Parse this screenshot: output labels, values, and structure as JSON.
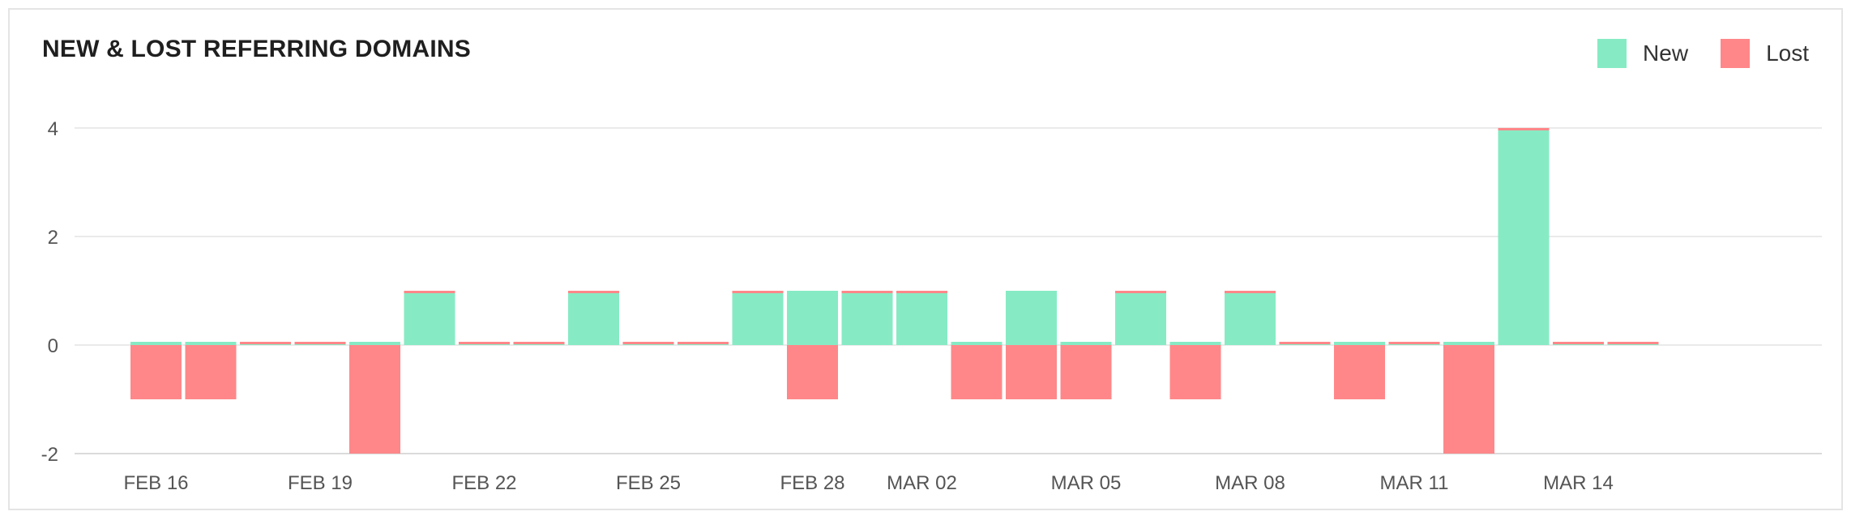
{
  "chart_data": {
    "type": "bar",
    "title": "NEW & LOST REFERRING DOMAINS",
    "xlabel": "",
    "ylabel": "",
    "ylim": [
      -2,
      4
    ],
    "yticks": [
      4,
      2,
      0,
      -2
    ],
    "x_tick_labels": [
      "FEB 16",
      "FEB 19",
      "FEB 22",
      "FEB 25",
      "FEB 28",
      "MAR 02",
      "MAR 05",
      "MAR 08",
      "MAR 11",
      "MAR 14"
    ],
    "categories": [
      "FEB 16",
      "FEB 17",
      "FEB 18",
      "FEB 19",
      "FEB 20",
      "FEB 21",
      "FEB 22",
      "FEB 23",
      "FEB 24",
      "FEB 25",
      "FEB 26",
      "FEB 27",
      "FEB 28",
      "MAR 01",
      "MAR 02",
      "MAR 03",
      "MAR 04",
      "MAR 05",
      "MAR 06",
      "MAR 07",
      "MAR 08",
      "MAR 09",
      "MAR 10",
      "MAR 11",
      "MAR 12",
      "MAR 13",
      "MAR 14",
      "MAR 15"
    ],
    "series": [
      {
        "name": "New",
        "color": "#86EBC4",
        "values": [
          0,
          0,
          0,
          0,
          0,
          1,
          0,
          0,
          1,
          0,
          0,
          1,
          1,
          1,
          1,
          0,
          1,
          0,
          1,
          0,
          1,
          0,
          0,
          0,
          0,
          4,
          0,
          0
        ]
      },
      {
        "name": "Lost",
        "color": "#FF8789",
        "values": [
          -1,
          -1,
          0,
          0,
          -2,
          0,
          0,
          0,
          0,
          0,
          0,
          0,
          -1,
          0,
          0,
          -1,
          -1,
          -1,
          0,
          -1,
          0,
          0,
          -1,
          0,
          -2,
          0,
          0,
          0
        ]
      }
    ],
    "grid": true,
    "legend_position": "top-right"
  }
}
